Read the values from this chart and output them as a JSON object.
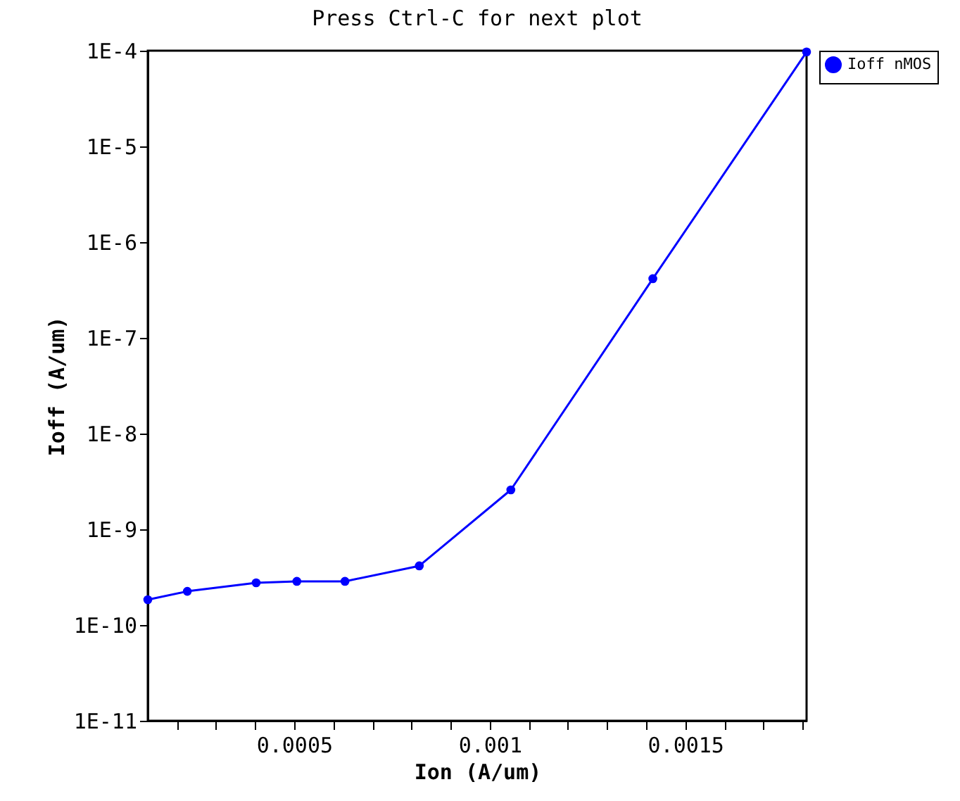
{
  "chart_data": {
    "type": "line",
    "title": "Press Ctrl-C for next plot",
    "xlabel": "Ion  (A/um)",
    "ylabel": "Ioff (A/um)",
    "x": [
      0.000126,
      0.000227,
      0.000403,
      0.000507,
      0.00063,
      0.00082,
      0.001054,
      0.001417,
      0.00181
    ],
    "series": [
      {
        "name": "Ioff nMOS",
        "color": "#0000ff",
        "values": [
          1.84e-10,
          2.25e-10,
          2.76e-10,
          2.86e-10,
          2.86e-10,
          4.15e-10,
          2.58e-09,
          4.15e-07,
          9.7e-05
        ]
      }
    ],
    "log": "y",
    "xlim": [
      0.000126,
      0.00181
    ],
    "ylim": [
      1e-11,
      0.0001
    ],
    "xticks": [
      {
        "value": 0.0002,
        "label": null
      },
      {
        "value": 0.0003,
        "label": null
      },
      {
        "value": 0.0004,
        "label": null
      },
      0.0005,
      {
        "value": 0.0006,
        "label": null
      },
      {
        "value": 0.0007,
        "label": null
      },
      {
        "value": 0.0008,
        "label": null
      },
      {
        "value": 0.0009,
        "label": null
      },
      0.001,
      {
        "value": 0.0011,
        "label": null
      },
      {
        "value": 0.0012,
        "label": null
      },
      {
        "value": 0.0013,
        "label": null
      },
      {
        "value": 0.0014,
        "label": null
      },
      0.0015,
      {
        "value": 0.0016,
        "label": null
      },
      {
        "value": 0.0017,
        "label": null
      },
      {
        "value": 0.0018,
        "label": null
      }
    ],
    "yticks": [
      {
        "value": 1e-11,
        "label": "1E-11"
      },
      {
        "value": 1e-10,
        "label": "1E-10"
      },
      {
        "value": 1e-09,
        "label": "1E-9"
      },
      {
        "value": 1e-08,
        "label": "1E-8"
      },
      {
        "value": 1e-07,
        "label": "1E-7"
      },
      {
        "value": 1e-06,
        "label": "1E-6"
      },
      {
        "value": 1e-05,
        "label": "1E-5"
      },
      {
        "value": 0.0001,
        "label": "1E-4"
      }
    ],
    "grid": false,
    "legend": "top right",
    "marker": "circle",
    "line_style": "solid"
  }
}
